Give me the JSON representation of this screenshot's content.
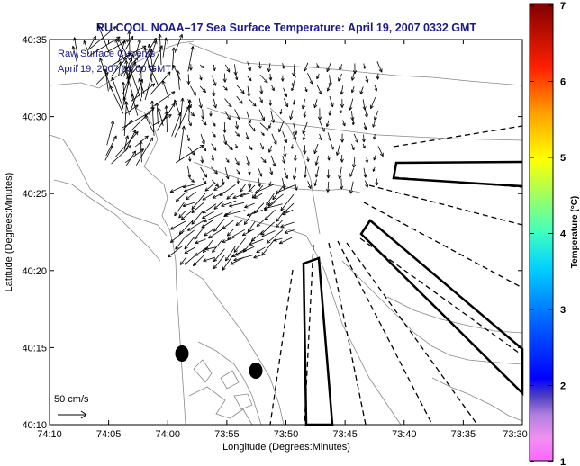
{
  "title": "RU COOL  NOAA–17  Sea Surface Temperature:  April 19, 2007 0332 GMT",
  "legend_line1": "Raw Surface Currents",
  "legend_line2": "April 19, 2007 03:00 GMT",
  "scale_label": "50 cm/s",
  "x_axis": {
    "label": "Longitude (Degrees:Minutes)",
    "ticks": [
      "74:10",
      "74:05",
      "74:00",
      "73:55",
      "73:50",
      "73:45",
      "73:40",
      "73:35",
      "73:30"
    ]
  },
  "y_axis": {
    "label": "Latitude (Degrees:Minutes)",
    "ticks": [
      "40:35",
      "40:30",
      "40:25",
      "40:20",
      "40:15",
      "40:10"
    ]
  },
  "colorbar": {
    "label": "Temperature (°C)",
    "ticks": [
      "7",
      "6",
      "5",
      "4",
      "3",
      "2",
      "1"
    ]
  },
  "colors": {
    "title": "#1a1a8c",
    "legend_text": "#1a1a8c",
    "land_contour": "#888888",
    "vector": "#000000"
  }
}
